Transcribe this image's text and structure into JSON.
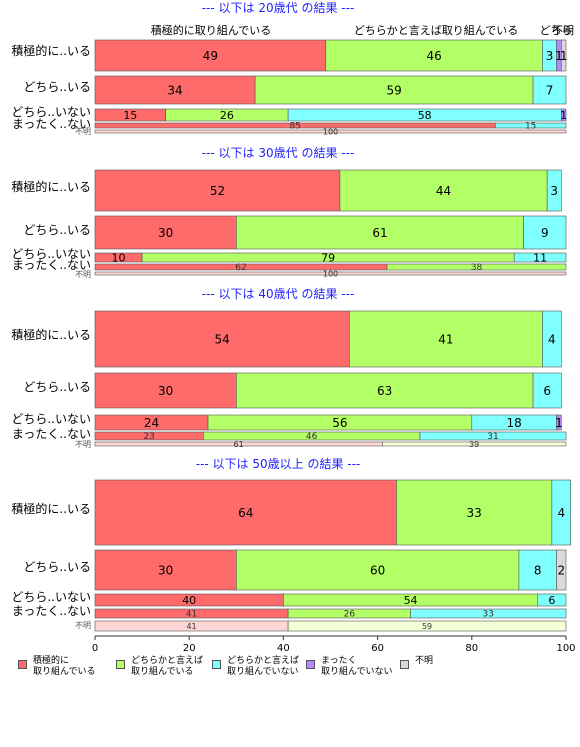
{
  "chart_data": {
    "type": "bar",
    "orientation": "horizontal",
    "stacked": "percent",
    "xlim": [
      0,
      100
    ],
    "x_ticks": [
      "0",
      "20",
      "40",
      "60",
      "80",
      "100"
    ],
    "series_headers": [
      "積極的に取り組んでいる",
      "どちらかと言えば取り組んでいる",
      "どちらかと言えば取り組んでいない",
      "まったく取り組んでいない",
      "不明"
    ],
    "series_colors": [
      "#ff6b6b",
      "#b3ff66",
      "#80ffff",
      "#b388ff",
      "#d9d9d9"
    ],
    "categories": [
      "積極的に..いる",
      "どちら..いる",
      "どちら..いない",
      "まったく..ない",
      "不明"
    ],
    "panels": [
      {
        "title": "--- 以下は 20歳代 の結果 ---",
        "rows": [
          {
            "label": "積極的に..いる",
            "values": [
              49,
              46,
              3,
              1,
              1
            ]
          },
          {
            "label": "どちら..いる",
            "values": [
              34,
              59,
              7,
              0,
              0
            ]
          },
          {
            "label": "どちら..いない",
            "values": [
              15,
              26,
              58,
              1,
              0
            ]
          },
          {
            "label": "まったく..ない",
            "values": [
              85,
              0,
              15,
              0,
              0
            ]
          },
          {
            "label": "不明",
            "values": [
              100,
              0,
              0,
              0,
              0
            ]
          }
        ]
      },
      {
        "title": "--- 以下は 30歳代 の結果 ---",
        "rows": [
          {
            "label": "積極的に..いる",
            "values": [
              52,
              44,
              3,
              0,
              0
            ]
          },
          {
            "label": "どちら..いる",
            "values": [
              30,
              61,
              9,
              0,
              0
            ]
          },
          {
            "label": "どちら..いない",
            "values": [
              10,
              79,
              11,
              0,
              0
            ]
          },
          {
            "label": "まったく..ない",
            "values": [
              62,
              38,
              0,
              0,
              0
            ]
          },
          {
            "label": "不明",
            "values": [
              100,
              0,
              0,
              0,
              0
            ]
          }
        ]
      },
      {
        "title": "--- 以下は 40歳代 の結果 ---",
        "rows": [
          {
            "label": "積極的に..いる",
            "values": [
              54,
              41,
              4,
              0,
              0
            ]
          },
          {
            "label": "どちら..いる",
            "values": [
              30,
              63,
              6,
              0,
              0
            ]
          },
          {
            "label": "どちら..いない",
            "values": [
              24,
              56,
              18,
              1,
              0
            ]
          },
          {
            "label": "まったく..ない",
            "values": [
              23,
              46,
              31,
              0,
              0
            ]
          },
          {
            "label": "不明",
            "values": [
              61,
              39,
              0,
              0,
              0
            ]
          }
        ]
      },
      {
        "title": "--- 以下は 50歳以上 の結果 ---",
        "rows": [
          {
            "label": "積極的に..いる",
            "values": [
              64,
              33,
              4,
              0,
              0
            ]
          },
          {
            "label": "どちら..いる",
            "values": [
              30,
              60,
              8,
              0,
              2
            ]
          },
          {
            "label": "どちら..いない",
            "values": [
              40,
              54,
              6,
              0,
              0
            ]
          },
          {
            "label": "まったく..ない",
            "values": [
              41,
              26,
              33,
              0,
              0
            ]
          },
          {
            "label": "不明",
            "values": [
              41,
              59,
              0,
              0,
              0
            ]
          }
        ]
      }
    ],
    "legend": {
      "placement": "bottom-left",
      "items": [
        {
          "label": "積極的に\n取り組んでいる",
          "color": "#ff6b6b"
        },
        {
          "label": "どちらかと言えば\n取り組んでいる",
          "color": "#b3ff66"
        },
        {
          "label": "どちらかと言えば\n取り組んでいない",
          "color": "#80ffff"
        },
        {
          "label": "まったく\n取り組んでいない",
          "color": "#b388ff"
        },
        {
          "label": "不明",
          "color": "#d9d9d9"
        }
      ]
    }
  }
}
